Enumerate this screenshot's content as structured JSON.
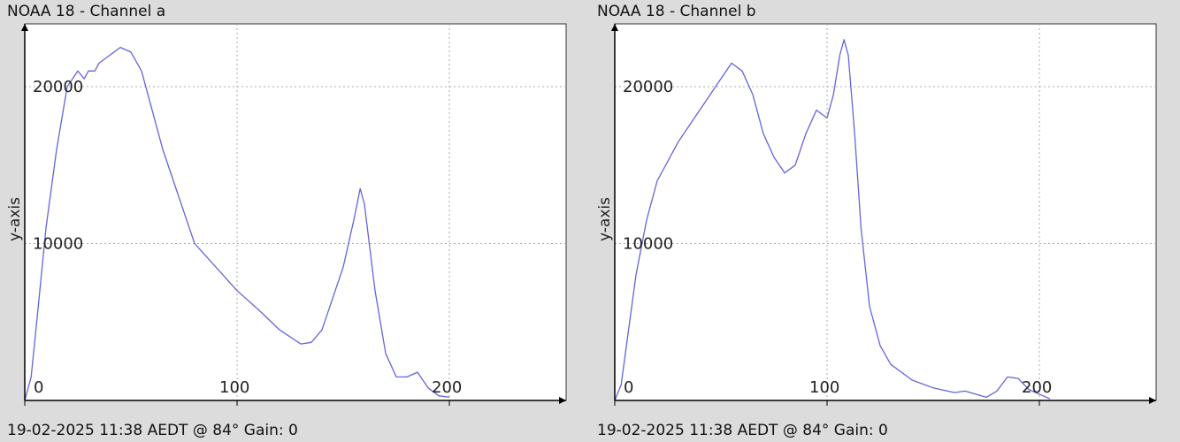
{
  "colors": {
    "background": "#dcdcdc",
    "plot_bg": "#ffffff",
    "line": "#6464dc",
    "grid": "#aaaaaa",
    "axis": "#000000"
  },
  "panels": [
    {
      "title": "NOAA 18 - Channel a",
      "footer": "19-02-2025 11:38 AEDT @ 84° Gain: 0"
    },
    {
      "title": "NOAA 18 - Channel b",
      "footer": "19-02-2025 11:38 AEDT @ 84° Gain: 0"
    }
  ],
  "chart_data": [
    {
      "type": "line",
      "title": "NOAA 18 - Channel a",
      "ylabel": "y-axis",
      "xlim": [
        0,
        255
      ],
      "ylim": [
        0,
        24000
      ],
      "xticks": [
        "0",
        "100",
        "200"
      ],
      "yticks": [
        "10000",
        "20000"
      ],
      "grid": true,
      "x": [
        0,
        3,
        6,
        10,
        15,
        20,
        25,
        28,
        30,
        33,
        35,
        40,
        45,
        50,
        55,
        60,
        65,
        70,
        80,
        90,
        100,
        110,
        120,
        130,
        135,
        140,
        150,
        155,
        158,
        160,
        165,
        170,
        175,
        180,
        185,
        190,
        195,
        200
      ],
      "values": [
        0,
        1500,
        5500,
        11000,
        16000,
        20000,
        21000,
        20500,
        21000,
        21000,
        21500,
        22000,
        22500,
        22200,
        21000,
        18500,
        16000,
        14000,
        10000,
        8500,
        7000,
        5800,
        4500,
        3600,
        3700,
        4500,
        8500,
        11500,
        13500,
        12500,
        7000,
        3000,
        1500,
        1500,
        1800,
        800,
        300,
        200
      ]
    },
    {
      "type": "line",
      "title": "NOAA 18 - Channel b",
      "ylabel": "y-axis",
      "xlim": [
        0,
        255
      ],
      "ylim": [
        0,
        24000
      ],
      "xticks": [
        "0",
        "100",
        "200"
      ],
      "yticks": [
        "10000",
        "20000"
      ],
      "grid": true,
      "x": [
        0,
        3,
        6,
        10,
        15,
        20,
        30,
        40,
        50,
        55,
        60,
        65,
        70,
        75,
        80,
        85,
        90,
        95,
        100,
        103,
        106,
        108,
        110,
        113,
        116,
        120,
        125,
        130,
        140,
        150,
        160,
        165,
        170,
        175,
        180,
        185,
        190,
        195,
        205
      ],
      "values": [
        0,
        1000,
        4000,
        8000,
        11500,
        14000,
        16500,
        18500,
        20500,
        21500,
        21000,
        19500,
        17000,
        15500,
        14500,
        15000,
        17000,
        18500,
        18000,
        19500,
        22000,
        23000,
        22000,
        17000,
        11000,
        6000,
        3500,
        2300,
        1300,
        800,
        500,
        600,
        400,
        200,
        600,
        1500,
        1400,
        700,
        100
      ]
    }
  ]
}
